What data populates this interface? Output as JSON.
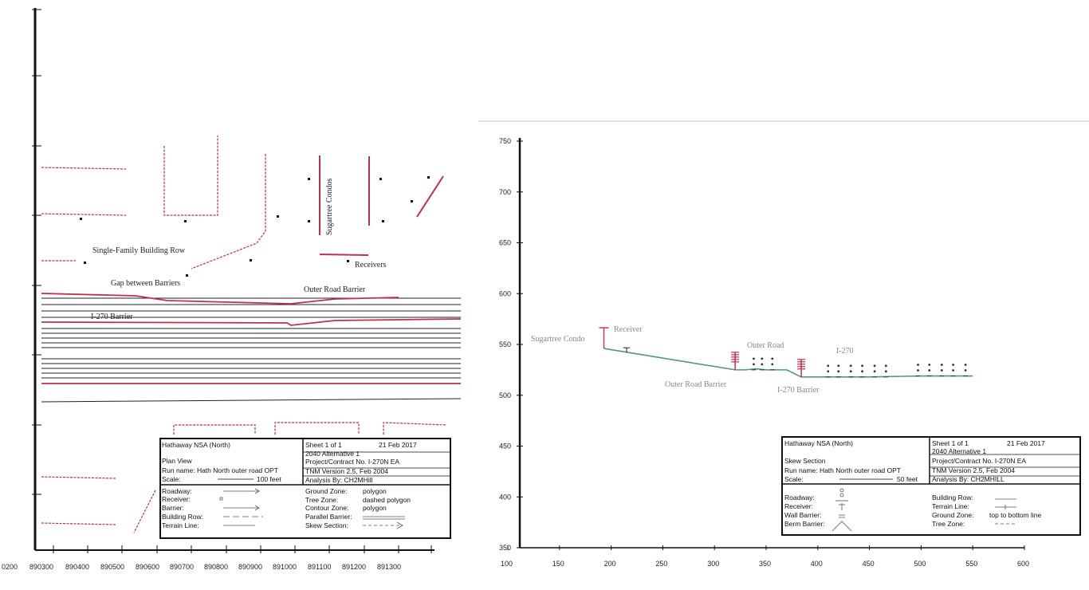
{
  "plan_view": {
    "labels": {
      "sugartree_condos": "Sugartree Condos",
      "single_family_row": "Single-Family Building Row",
      "receivers": "Receivers",
      "gap_between_barriers": "Gap between Barriers",
      "outer_road_barrier": "Outer Road Barrier",
      "i270_barrier": "I-270 Barrier"
    },
    "x_ticks": [
      "0200",
      "890300",
      "890400",
      "890500",
      "890600",
      "890700",
      "890800",
      "890900",
      "891000",
      "891100",
      "891200",
      "891300"
    ],
    "title_block": {
      "project": "Hathaway NSA (North)",
      "sheet": "Sheet 1 of 1",
      "date": "21 Feb 2017",
      "alternative": "2040 Alternative 1",
      "view": "Plan View",
      "project_contract": "Project/Contract No. I-270N EA",
      "run_name": "Run name: Hath North outer road OPT",
      "tnm_version": "TNM Version 2.5, Feb 2004",
      "scale_label": "Scale:",
      "scale_value": "100 feet",
      "analysis_by": "Analysis By: CH2MHill",
      "legend_left": [
        "Roadway:",
        "Receiver:",
        "Barrier:",
        "Building Row:",
        "Terrain Line:"
      ],
      "legend_right": [
        {
          "label": "Ground Zone:",
          "value": "polygon"
        },
        {
          "label": "Tree Zone:",
          "value": "dashed polygon"
        },
        {
          "label": "Contour Zone:",
          "value": "polygon"
        },
        {
          "label": "Parallel Barrier:",
          "value": ""
        },
        {
          "label": "Skew Section:",
          "value": ""
        }
      ]
    }
  },
  "skew_section": {
    "labels": {
      "sugartree_condo": "Sugartree Condo",
      "receiver": "Receiver",
      "outer_road": "Outer Road",
      "i270": "I-270",
      "outer_road_barrier": "Outer Road Barrier",
      "i270_barrier": "I-270 Barrier"
    },
    "title_block": {
      "project": "Hathaway NSA (North)",
      "sheet": "Sheet 1 of 1",
      "date": "21 Feb 2017",
      "alternative": "2040 Alternative 1",
      "view": "Skew Section",
      "project_contract": "Project/Contract No. I-270N EA",
      "run_name": "Run name: Hath North outer road OPT",
      "tnm_version": "TNM Version 2.5, Feb 2004",
      "scale_label": "Scale:",
      "scale_value": "50 feet",
      "analysis_by": "Analysis By: CH2MHILL",
      "legend_left": [
        "Roadway:",
        "Receiver:",
        "Wall Barrier:",
        "Berm Barrier:"
      ],
      "legend_right": [
        {
          "label": "Building Row:",
          "value": ""
        },
        {
          "label": "Terrain Line:",
          "value": ""
        },
        {
          "label": "Ground Zone:",
          "value": "top to bottom line"
        },
        {
          "label": "Tree Zone:",
          "value": ""
        }
      ]
    }
  },
  "chart_data": {
    "type": "line",
    "x_ticks": [
      100,
      150,
      200,
      250,
      300,
      350,
      400,
      450,
      500,
      550,
      600
    ],
    "y_ticks": [
      350,
      400,
      450,
      500,
      550,
      600,
      650,
      700,
      750
    ],
    "xlim": [
      100,
      600
    ],
    "ylim": [
      350,
      750
    ],
    "series": [
      {
        "x": [
          193,
          320,
          330,
          340,
          350,
          360,
          370,
          384,
          390,
          400,
          410,
          450,
          500,
          550
        ],
        "y": [
          546,
          525,
          525,
          526,
          525,
          525,
          525,
          518,
          518,
          518,
          518,
          518,
          519,
          519
        ]
      }
    ],
    "terrain_color": "#4f9a6e",
    "barrier_color": "#c0304a"
  }
}
